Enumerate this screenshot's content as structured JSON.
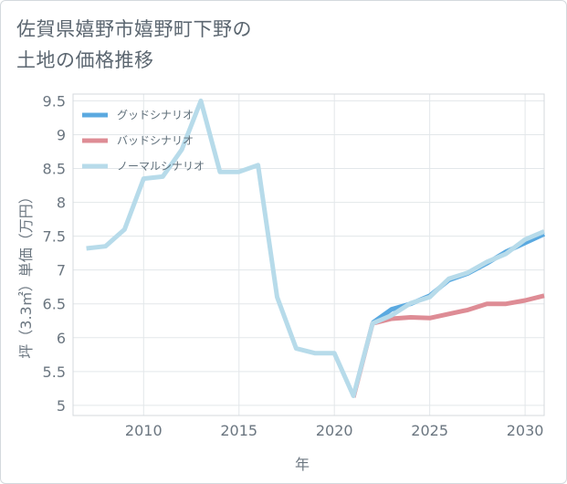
{
  "page": {
    "title_line1": "佐賀県嬉野市嬉野町下野の",
    "title_line2": "土地の価格推移"
  },
  "chart_data": {
    "type": "line",
    "title": "佐賀県嬉野市嬉野町下野の土地の価格推移",
    "xlabel": "年",
    "ylabel": "坪（3.3㎡）単価（万円）",
    "xlim": [
      2006.3,
      2031
    ],
    "ylim": [
      4.85,
      9.6
    ],
    "x_ticks": [
      2010,
      2015,
      2020,
      2025,
      2030
    ],
    "y_ticks": [
      5,
      5.5,
      6,
      6.5,
      7,
      7.5,
      8,
      8.5,
      9,
      9.5
    ],
    "y_tick_labels": [
      "5",
      "5.5",
      "6",
      "6.5",
      "7",
      "7.5",
      "8",
      "8.5",
      "9",
      "9.5"
    ],
    "legend_position": "top-left",
    "grid": true,
    "series": [
      {
        "name": "グッドシナリオ",
        "color": "#5aa9e0",
        "x": [
          2022,
          2023,
          2024,
          2025,
          2026,
          2027,
          2028,
          2029,
          2030,
          2031
        ],
        "values": [
          6.22,
          6.42,
          6.5,
          6.62,
          6.85,
          6.95,
          7.1,
          7.27,
          7.4,
          7.53
        ]
      },
      {
        "name": "バッドシナリオ",
        "color": "#de8c95",
        "x": [
          2021,
          2022,
          2023,
          2024,
          2025,
          2026,
          2027,
          2028,
          2029,
          2030,
          2031
        ],
        "values": [
          5.12,
          6.21,
          6.28,
          6.3,
          6.29,
          6.35,
          6.41,
          6.5,
          6.5,
          6.55,
          6.62
        ]
      },
      {
        "name": "ノーマルシナリオ",
        "color": "#b7dbea",
        "x": [
          2007,
          2008,
          2009,
          2010,
          2011,
          2012,
          2013,
          2014,
          2015,
          2016,
          2017,
          2018,
          2019,
          2020,
          2021,
          2022,
          2023,
          2024,
          2025,
          2026,
          2027,
          2028,
          2029,
          2030,
          2031
        ],
        "values": [
          7.32,
          7.35,
          7.6,
          8.35,
          8.38,
          8.78,
          9.5,
          8.45,
          8.45,
          8.55,
          6.6,
          5.84,
          5.77,
          5.77,
          5.14,
          6.21,
          6.33,
          6.51,
          6.6,
          6.87,
          6.96,
          7.12,
          7.24,
          7.45,
          7.57
        ]
      }
    ]
  }
}
